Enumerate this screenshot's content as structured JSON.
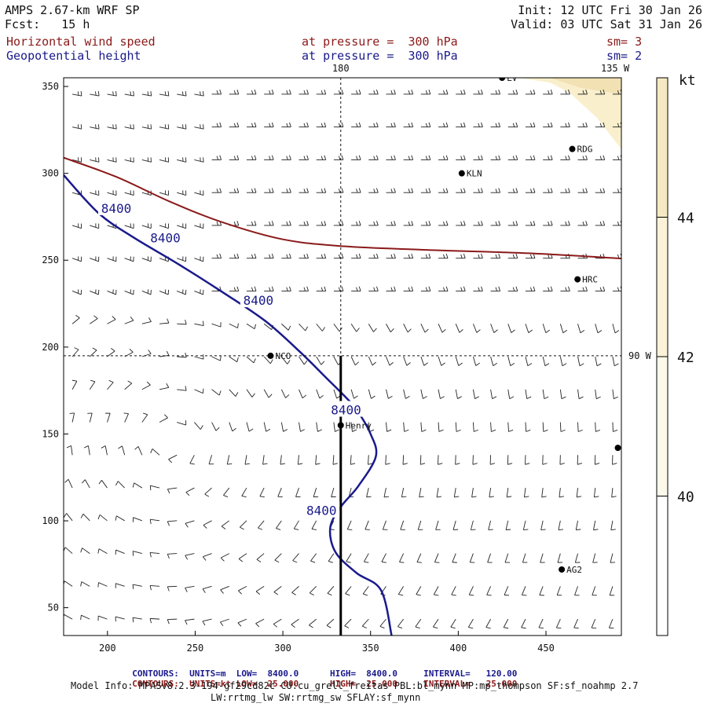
{
  "header": {
    "model": "AMPS 2.67-km WRF SP",
    "forecast": "Fcst:   15 h",
    "init": "Init: 12 UTC Fri 30 Jan 26",
    "valid": "Valid: 03 UTC Sat 31 Jan 26",
    "field1": "Horizontal wind speed",
    "field2": "Geopotential height",
    "pressure1": "at pressure =  300 hPa",
    "pressure2": "at pressure =  300 hPa",
    "sm1": "sm= 3",
    "sm2": "sm= 2"
  },
  "colors": {
    "height_contour": "#1a1a8c",
    "speed_contour": "#8b1a1a",
    "shade_light": "#fdf8e6",
    "shade_mid": "#f9efcc",
    "shade_dark": "#f1e1b3"
  },
  "chart_data": {
    "type": "contour",
    "title": "",
    "xlabel": "",
    "ylabel": "",
    "xlim": [
      175,
      493
    ],
    "ylim": [
      34,
      355
    ],
    "x_ticks": [
      200,
      250,
      300,
      350,
      400,
      450
    ],
    "y_ticks": [
      50,
      100,
      150,
      200,
      250,
      300,
      350
    ],
    "grid": false,
    "meridian_labels": [
      "180",
      "135 W",
      "90 W"
    ],
    "meridian_180_x": 333,
    "meridian_90w_y": 195,
    "stations": [
      {
        "name": "LV",
        "x": 425,
        "y": 355
      },
      {
        "name": "RDG",
        "x": 465,
        "y": 314
      },
      {
        "name": "KLN",
        "x": 402,
        "y": 300
      },
      {
        "name": "HRC",
        "x": 468,
        "y": 239
      },
      {
        "name": "NCO",
        "x": 293,
        "y": 195
      },
      {
        "name": "Henry",
        "x": 333,
        "y": 155
      },
      {
        "name": "",
        "x": 491,
        "y": 142
      },
      {
        "name": "AG2",
        "x": 459,
        "y": 72
      }
    ],
    "height_contour": {
      "label": "8400",
      "units": "m",
      "label_positions": [
        [
          205,
          280
        ],
        [
          233,
          263
        ],
        [
          286,
          227
        ],
        [
          336,
          164
        ],
        [
          322,
          106
        ]
      ],
      "points": [
        [
          175,
          299
        ],
        [
          195,
          277
        ],
        [
          215,
          263
        ],
        [
          240,
          248
        ],
        [
          265,
          232
        ],
        [
          290,
          215
        ],
        [
          310,
          197
        ],
        [
          325,
          182
        ],
        [
          335,
          172
        ],
        [
          342,
          164
        ],
        [
          350,
          150
        ],
        [
          353,
          137
        ],
        [
          343,
          120
        ],
        [
          333,
          108
        ],
        [
          327,
          96
        ],
        [
          330,
          82
        ],
        [
          342,
          70
        ],
        [
          356,
          60
        ],
        [
          362,
          34
        ]
      ]
    },
    "speed_contour": {
      "label": "25.000",
      "units": "kt",
      "points": [
        [
          175,
          309
        ],
        [
          205,
          298
        ],
        [
          235,
          284
        ],
        [
          265,
          272
        ],
        [
          300,
          262
        ],
        [
          335,
          258
        ],
        [
          380,
          256
        ],
        [
          440,
          254
        ],
        [
          493,
          251
        ]
      ]
    },
    "color_scale": {
      "units": "kt",
      "ticks": [
        40,
        42,
        44
      ],
      "min": 38,
      "max": 46
    },
    "barbs": {
      "orientation_note": "direction in degrees (0=east, 90=north)",
      "rows": 17,
      "cols": 32
    }
  },
  "footer": {
    "c1_label": "CONTOURS:",
    "c1_units": "UNITS=m",
    "c1_low": "LOW=  8400.0",
    "c1_high": "HIGH=  8400.0",
    "c1_interval": "INTERVAL=   120.00",
    "c2_label": "CONTOURS:",
    "c2_units": "UNITS=kt",
    "c2_low": "LOW=  25.000",
    "c2_high": "HIGH=  25.000",
    "c2_interval": "INTERVAL=   25.000",
    "model_info_1": "Model Info: MPASv8.2.3-194-gf29cd82c CU:cu_grell_freitas PBL:bl_mynn MP:mp_thompson SF:sf_noahmp 2.7",
    "model_info_2": "LW:rrtmg_lw SW:rrtmg_sw SFLAY:sf_mynn"
  }
}
